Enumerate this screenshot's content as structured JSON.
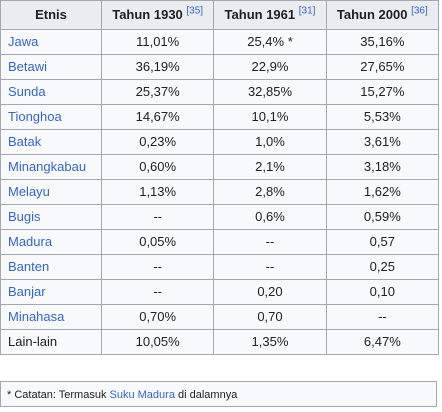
{
  "table": {
    "headers": [
      {
        "label": "Etnis",
        "ref": ""
      },
      {
        "label": "Tahun 1930 ",
        "ref": "[35]"
      },
      {
        "label": "Tahun 1961 ",
        "ref": "[31]"
      },
      {
        "label": "Tahun 2000 ",
        "ref": "[36]"
      }
    ],
    "rows": [
      {
        "etnis": "Jawa",
        "link": true,
        "y1930": "11,01%",
        "y1961": "25,4% *",
        "y2000": "35,16%"
      },
      {
        "etnis": "Betawi",
        "link": true,
        "y1930": "36,19%",
        "y1961": "22,9%",
        "y2000": "27,65%"
      },
      {
        "etnis": "Sunda",
        "link": true,
        "y1930": "25,37%",
        "y1961": "32,85%",
        "y2000": "15,27%"
      },
      {
        "etnis": "Tionghoa",
        "link": true,
        "y1930": "14,67%",
        "y1961": "10,1%",
        "y2000": "5,53%"
      },
      {
        "etnis": "Batak",
        "link": true,
        "y1930": "0,23%",
        "y1961": "1,0%",
        "y2000": "3,61%"
      },
      {
        "etnis": "Minangkabau",
        "link": true,
        "y1930": "0,60%",
        "y1961": "2,1%",
        "y2000": "3,18%"
      },
      {
        "etnis": "Melayu",
        "link": true,
        "y1930": "1,13%",
        "y1961": "2,8%",
        "y2000": "1,62%"
      },
      {
        "etnis": "Bugis",
        "link": true,
        "y1930": "--",
        "y1961": "0,6%",
        "y2000": "0,59%"
      },
      {
        "etnis": "Madura",
        "link": true,
        "y1930": "0,05%",
        "y1961": "--",
        "y2000": "0,57"
      },
      {
        "etnis": "Banten",
        "link": true,
        "y1930": "--",
        "y1961": "--",
        "y2000": "0,25"
      },
      {
        "etnis": "Banjar",
        "link": true,
        "y1930": "--",
        "y1961": "0,20",
        "y2000": "0,10"
      },
      {
        "etnis": "Minahasa",
        "link": true,
        "y1930": "0,70%",
        "y1961": "0,70",
        "y2000": "--"
      },
      {
        "etnis": "Lain-lain",
        "link": false,
        "y1930": "10,05%",
        "y1961": "1,35%",
        "y2000": "6,47%"
      }
    ]
  },
  "footnote": {
    "prefix": "* Catatan: Termasuk ",
    "link": "Suku Madura",
    "suffix": " di dalamnya"
  },
  "colors": {
    "link": "#3366cc",
    "header_bg": "#eaecf0",
    "cell_bg": "#f8f9fa",
    "border": "#a2a9b1"
  }
}
